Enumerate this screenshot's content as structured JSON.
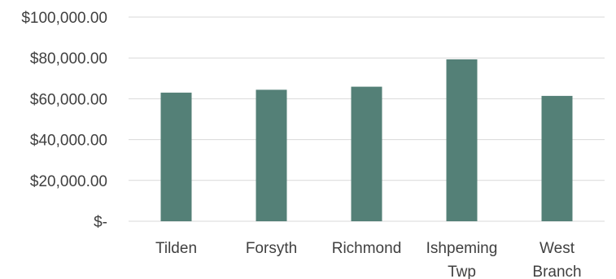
{
  "chart_data": {
    "type": "bar",
    "title": "",
    "xlabel": "",
    "ylabel": "",
    "categories": [
      [
        "Tilden"
      ],
      [
        "Forsyth"
      ],
      [
        "Richmond"
      ],
      [
        "Ishpeming",
        "Twp"
      ],
      [
        "West",
        "Branch"
      ]
    ],
    "values": [
      63000,
      64400,
      65900,
      79300,
      61400
    ],
    "ylim": [
      0,
      100000
    ],
    "yticks": [
      0,
      20000,
      40000,
      60000,
      80000,
      100000
    ],
    "ytick_labels": [
      "$-",
      "$20,000.00",
      "$40,000.00",
      "$60,000.00",
      "$80,000.00",
      "$100,000.00"
    ],
    "grid": true,
    "legend": "none",
    "bar_color": "#548077"
  }
}
